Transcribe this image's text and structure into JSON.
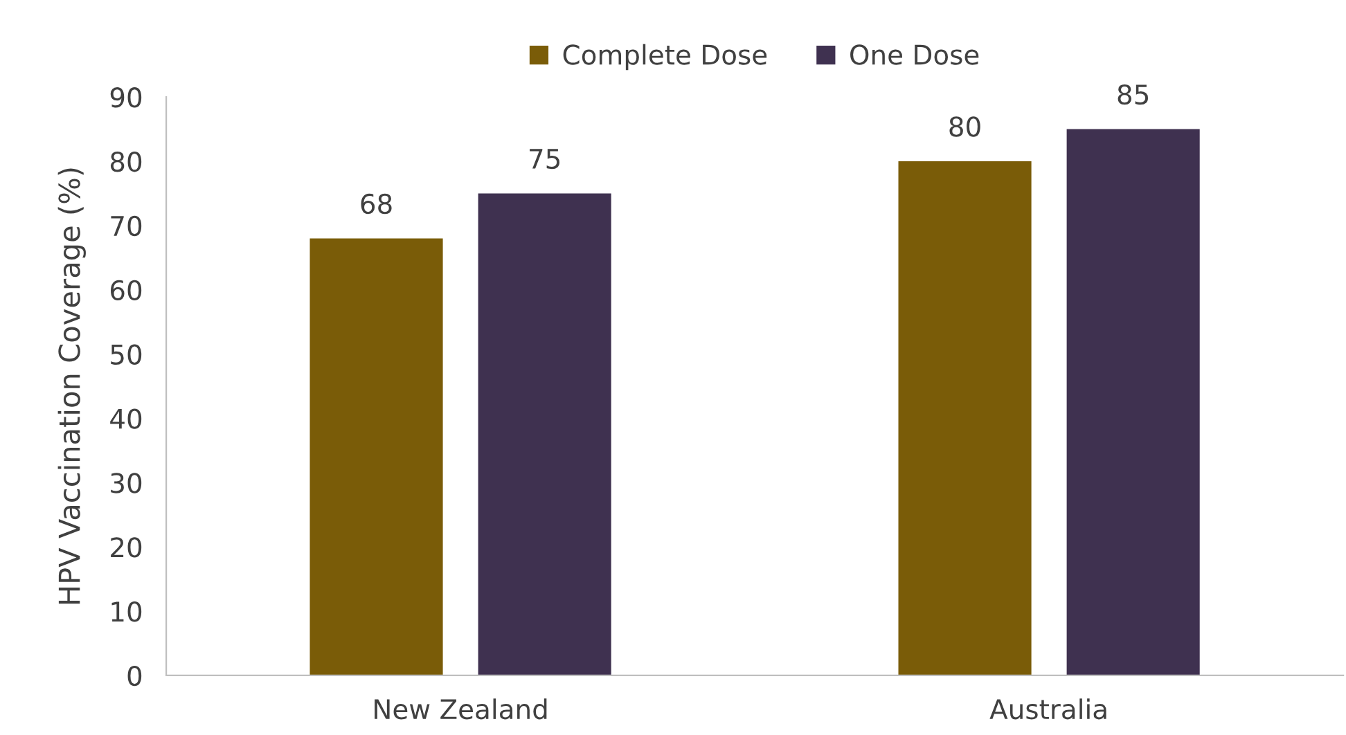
{
  "chart_data": {
    "type": "bar",
    "ylabel": "HPV Vaccination Coverage (%)",
    "categories": [
      "New Zealand",
      "Australia"
    ],
    "series": [
      {
        "name": "Complete Dose",
        "color": "#7a5c08",
        "values": [
          68,
          80
        ]
      },
      {
        "name": "One Dose",
        "color": "#3f3150",
        "values": [
          75,
          85
        ]
      }
    ],
    "ylim": [
      0,
      90
    ],
    "yticks": [
      0,
      10,
      20,
      30,
      40,
      50,
      60,
      70,
      80,
      90
    ],
    "data_labels": true,
    "grid": false,
    "legend": "top"
  }
}
